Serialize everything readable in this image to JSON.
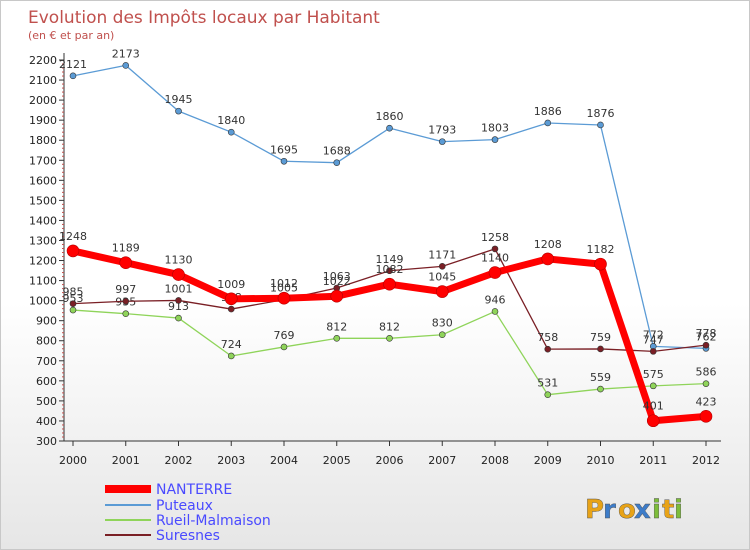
{
  "chart_data": {
    "type": "line",
    "title": "Evolution des Impôts locaux par Habitant",
    "subtitle": "(en € et par an)",
    "categories": [
      "2000",
      "2001",
      "2002",
      "2003",
      "2004",
      "2005",
      "2006",
      "2007",
      "2008",
      "2009",
      "2010",
      "2011",
      "2012"
    ],
    "ylim": [
      300,
      2200
    ],
    "yticks": [
      300,
      400,
      500,
      600,
      700,
      800,
      900,
      1000,
      1100,
      1200,
      1300,
      1400,
      1500,
      1600,
      1700,
      1800,
      1900,
      2000,
      2100,
      2200
    ],
    "grid": false,
    "series": [
      {
        "name": "Puteaux",
        "color": "#5b9bd5",
        "width": 1.3,
        "values": [
          2121,
          2173,
          1945,
          1840,
          1695,
          1688,
          1860,
          1793,
          1803,
          1886,
          1876,
          772,
          762
        ]
      },
      {
        "name": "Rueil-Malmaison",
        "color": "#8fd45a",
        "width": 1.3,
        "values": [
          953,
          935,
          913,
          724,
          769,
          812,
          812,
          830,
          946,
          531,
          559,
          575,
          586
        ]
      },
      {
        "name": "Suresnes",
        "color": "#7a1f25",
        "width": 1.3,
        "values": [
          985,
          997,
          1001,
          958,
          1005,
          1063,
          1149,
          1171,
          1258,
          758,
          759,
          747,
          778
        ]
      },
      {
        "name": "NANTERRE",
        "color": "#ff0000",
        "width": 7,
        "values": [
          1248,
          1189,
          1130,
          1009,
          1012,
          1022,
          1082,
          1045,
          1140,
          1208,
          1182,
          401,
          423
        ]
      }
    ],
    "legend": [
      "NANTERRE",
      "Puteaux",
      "Rueil-Malmaison",
      "Suresnes"
    ]
  },
  "branding": {
    "logo_text": "Proxiti",
    "logo_letters": [
      "P",
      "r",
      "o",
      "x",
      "i",
      "t",
      "i"
    ],
    "logo_colors": [
      "#e8a317",
      "#3d7cc9",
      "#e8a317",
      "#3d7cc9",
      "#7dbd3a",
      "#e8a317",
      "#7dbd3a"
    ]
  }
}
